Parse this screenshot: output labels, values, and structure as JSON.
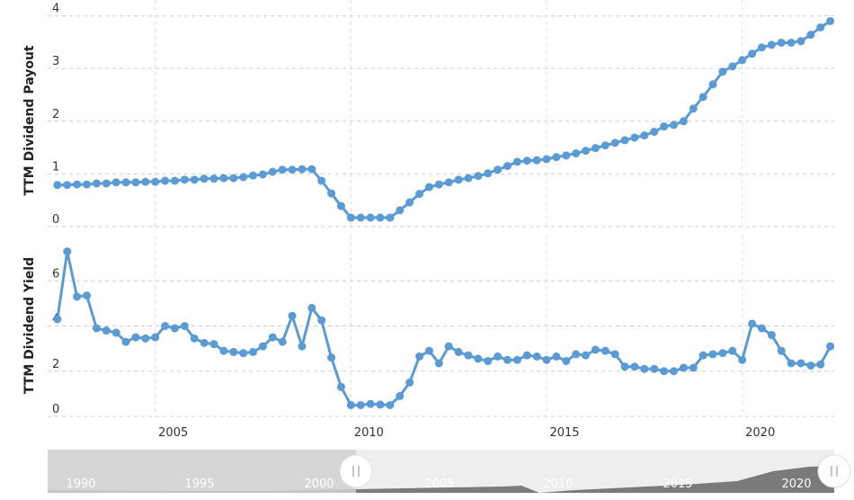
{
  "chart_data": [
    {
      "type": "line",
      "ylabel": "TTM Dividend Payout",
      "color": "#5b9bd5",
      "x": [
        2002.5,
        2002.75,
        2003,
        2003.25,
        2003.5,
        2003.75,
        2004,
        2004.25,
        2004.5,
        2004.75,
        2005,
        2005.25,
        2005.5,
        2005.75,
        2006,
        2006.25,
        2006.5,
        2006.75,
        2007,
        2007.25,
        2007.5,
        2007.75,
        2008,
        2008.25,
        2008.5,
        2008.75,
        2009,
        2009.25,
        2009.5,
        2009.75,
        2010,
        2010.25,
        2010.5,
        2010.75,
        2011,
        2011.25,
        2011.5,
        2011.75,
        2012,
        2012.25,
        2012.5,
        2012.75,
        2013,
        2013.25,
        2013.5,
        2013.75,
        2014,
        2014.25,
        2014.5,
        2014.75,
        2015,
        2015.25,
        2015.5,
        2015.75,
        2016,
        2016.25,
        2016.5,
        2016.75,
        2017,
        2017.25,
        2017.5,
        2017.75,
        2018,
        2018.25,
        2018.5,
        2018.75,
        2019,
        2019.25,
        2019.5,
        2019.75,
        2020,
        2020.25,
        2020.5,
        2020.75,
        2021,
        2021.25,
        2021.5,
        2021.75,
        2022,
        2022.25
      ],
      "values": [
        0.79,
        0.79,
        0.8,
        0.8,
        0.82,
        0.82,
        0.84,
        0.84,
        0.84,
        0.85,
        0.85,
        0.87,
        0.87,
        0.89,
        0.89,
        0.91,
        0.91,
        0.92,
        0.92,
        0.94,
        0.97,
        0.99,
        1.04,
        1.08,
        1.08,
        1.09,
        1.09,
        0.87,
        0.63,
        0.39,
        0.17,
        0.17,
        0.17,
        0.17,
        0.17,
        0.31,
        0.46,
        0.62,
        0.75,
        0.8,
        0.84,
        0.89,
        0.92,
        0.96,
        1.01,
        1.08,
        1.15,
        1.23,
        1.25,
        1.26,
        1.28,
        1.32,
        1.35,
        1.39,
        1.44,
        1.49,
        1.54,
        1.59,
        1.64,
        1.69,
        1.73,
        1.8,
        1.9,
        1.93,
        2.0,
        2.24,
        2.46,
        2.7,
        2.94,
        3.04,
        3.16,
        3.28,
        3.4,
        3.45,
        3.49,
        3.49,
        3.52,
        3.64,
        3.78,
        3.9
      ],
      "xlim": [
        2002.25,
        2022.35
      ],
      "xticks": [
        2005,
        2010,
        2015,
        2020
      ],
      "ylim": [
        0,
        4.3
      ],
      "yticks": [
        0,
        1,
        2,
        3,
        4
      ]
    },
    {
      "type": "line",
      "ylabel": "TTM Dividend Yield",
      "color": "#5b9bd5",
      "x": [
        2002.5,
        2002.75,
        2003,
        2003.25,
        2003.5,
        2003.75,
        2004,
        2004.25,
        2004.5,
        2004.75,
        2005,
        2005.25,
        2005.5,
        2005.75,
        2006,
        2006.25,
        2006.5,
        2006.75,
        2007,
        2007.25,
        2007.5,
        2007.75,
        2008,
        2008.25,
        2008.5,
        2008.75,
        2009,
        2009.25,
        2009.5,
        2009.75,
        2010,
        2010.25,
        2010.5,
        2010.75,
        2011,
        2011.25,
        2011.5,
        2011.75,
        2012,
        2012.25,
        2012.5,
        2012.75,
        2013,
        2013.25,
        2013.5,
        2013.75,
        2014,
        2014.25,
        2014.5,
        2014.75,
        2015,
        2015.25,
        2015.5,
        2015.75,
        2016,
        2016.25,
        2016.5,
        2016.75,
        2017,
        2017.25,
        2017.5,
        2017.75,
        2018,
        2018.25,
        2018.5,
        2018.75,
        2019,
        2019.25,
        2019.5,
        2019.75,
        2020,
        2020.25,
        2020.5,
        2020.75,
        2021,
        2021.25,
        2021.5,
        2021.75,
        2022,
        2022.25
      ],
      "values": [
        4.3,
        7.3,
        5.3,
        5.35,
        3.9,
        3.8,
        3.7,
        3.3,
        3.5,
        3.45,
        3.5,
        4.0,
        3.9,
        4.0,
        3.45,
        3.25,
        3.2,
        2.9,
        2.85,
        2.8,
        2.85,
        3.1,
        3.5,
        3.3,
        4.45,
        3.1,
        4.8,
        4.25,
        2.6,
        1.3,
        0.5,
        0.5,
        0.55,
        0.52,
        0.5,
        0.9,
        1.5,
        2.65,
        2.9,
        2.35,
        3.1,
        2.85,
        2.7,
        2.55,
        2.45,
        2.65,
        2.5,
        2.5,
        2.7,
        2.65,
        2.5,
        2.65,
        2.45,
        2.75,
        2.7,
        2.95,
        2.9,
        2.75,
        2.2,
        2.2,
        2.1,
        2.1,
        2.0,
        2.0,
        2.15,
        2.15,
        2.7,
        2.75,
        2.8,
        2.9,
        2.5,
        4.1,
        3.9,
        3.6,
        2.9,
        2.35,
        2.35,
        2.25,
        2.3,
        3.1
      ],
      "xlim": [
        2002.25,
        2022.35
      ],
      "xticks": [
        2005,
        2010,
        2015,
        2020
      ],
      "ylim": [
        0,
        8
      ],
      "yticks": [
        0,
        2,
        4,
        6
      ]
    }
  ],
  "navigator": {
    "labels": [
      "1990",
      "1995",
      "2000",
      "2005",
      "2010",
      "2015",
      "2020"
    ]
  }
}
